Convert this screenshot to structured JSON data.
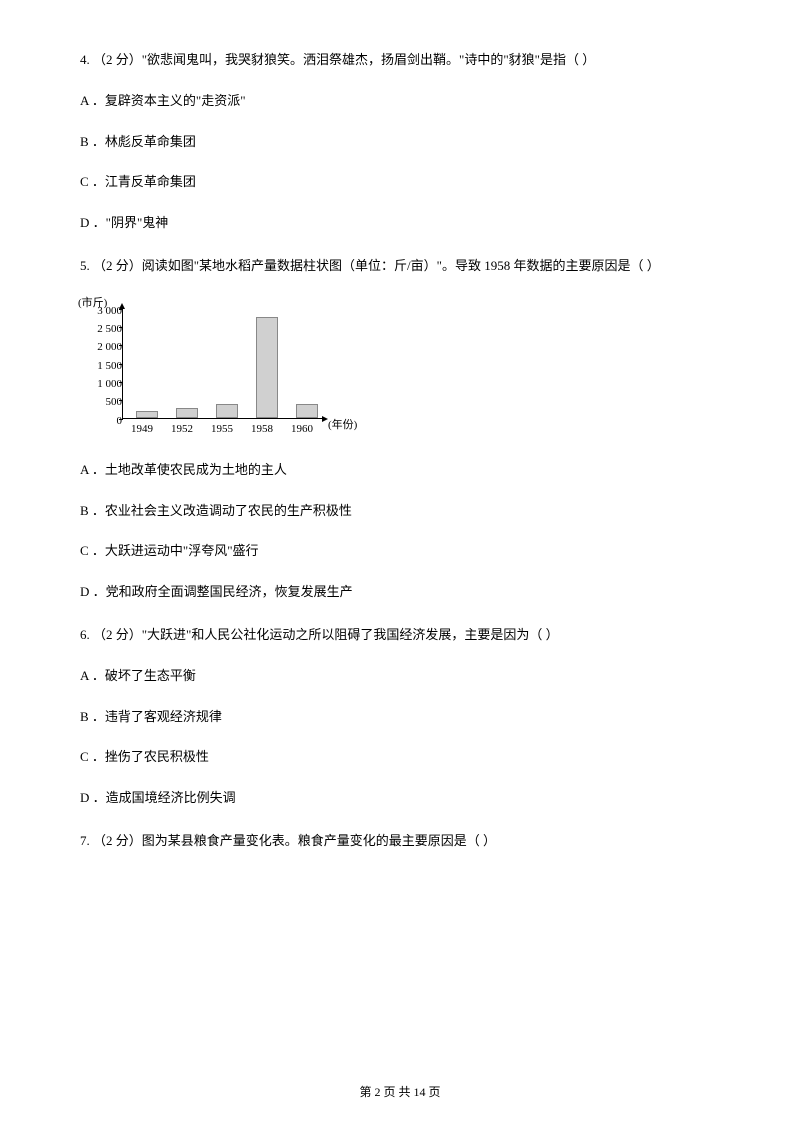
{
  "q4": {
    "text": "4.  （2 分）\"欲悲闻鬼叫，我哭豺狼笑。洒泪祭雄杰，扬眉剑出鞘。\"诗中的\"豺狼\"是指（      ）",
    "A": "A ．复辟资本主义的\"走资派\"",
    "B": "B ．林彪反革命集团",
    "C": "C ．江青反革命集团",
    "D": "D ．\"阴界\"鬼神"
  },
  "q5": {
    "text": "5.  （2 分）阅读如图\"某地水稻产量数据柱状图（单位：斤/亩）\"。导致 1958 年数据的主要原因是（      ）",
    "A": "A ．土地改革使农民成为土地的主人",
    "B": "B ．农业社会主义改造调动了农民的生产积极性",
    "C": "C ．大跃进运动中\"浮夸风\"盛行",
    "D": "D ．党和政府全面调整国民经济，恢复发展生产"
  },
  "q6": {
    "text": "6.  （2 分）\"大跃进\"和人民公社化运动之所以阻碍了我国经济发展，主要是因为（      ）",
    "A": "A ．破坏了生态平衡",
    "B": "B ．违背了客观经济规律",
    "C": "C ．挫伤了农民积极性",
    "D": "D ．造成国境经济比例失调"
  },
  "q7": {
    "text": "7.  （2 分）图为某县粮食产量变化表。粮食产量变化的最主要原因是（      ）"
  },
  "chart": {
    "type": "bar",
    "yaxis_label": "(市斤)",
    "xaxis_label": "(年份)",
    "ylim": [
      0,
      3000
    ],
    "ytick_step": 500,
    "yticks": [
      "0",
      "500",
      "1 000",
      "1 500",
      "2 000",
      "2 500",
      "3 000"
    ],
    "categories": [
      "1949",
      "1952",
      "1955",
      "1958",
      "1960"
    ],
    "values": [
      180,
      280,
      380,
      2750,
      380
    ],
    "bar_color": "#d0d0d0",
    "bar_border": "#888888",
    "background_color": "#ffffff",
    "axis_color": "#000000",
    "label_fontsize": 11
  },
  "footer": "第 2 页 共 14 页"
}
